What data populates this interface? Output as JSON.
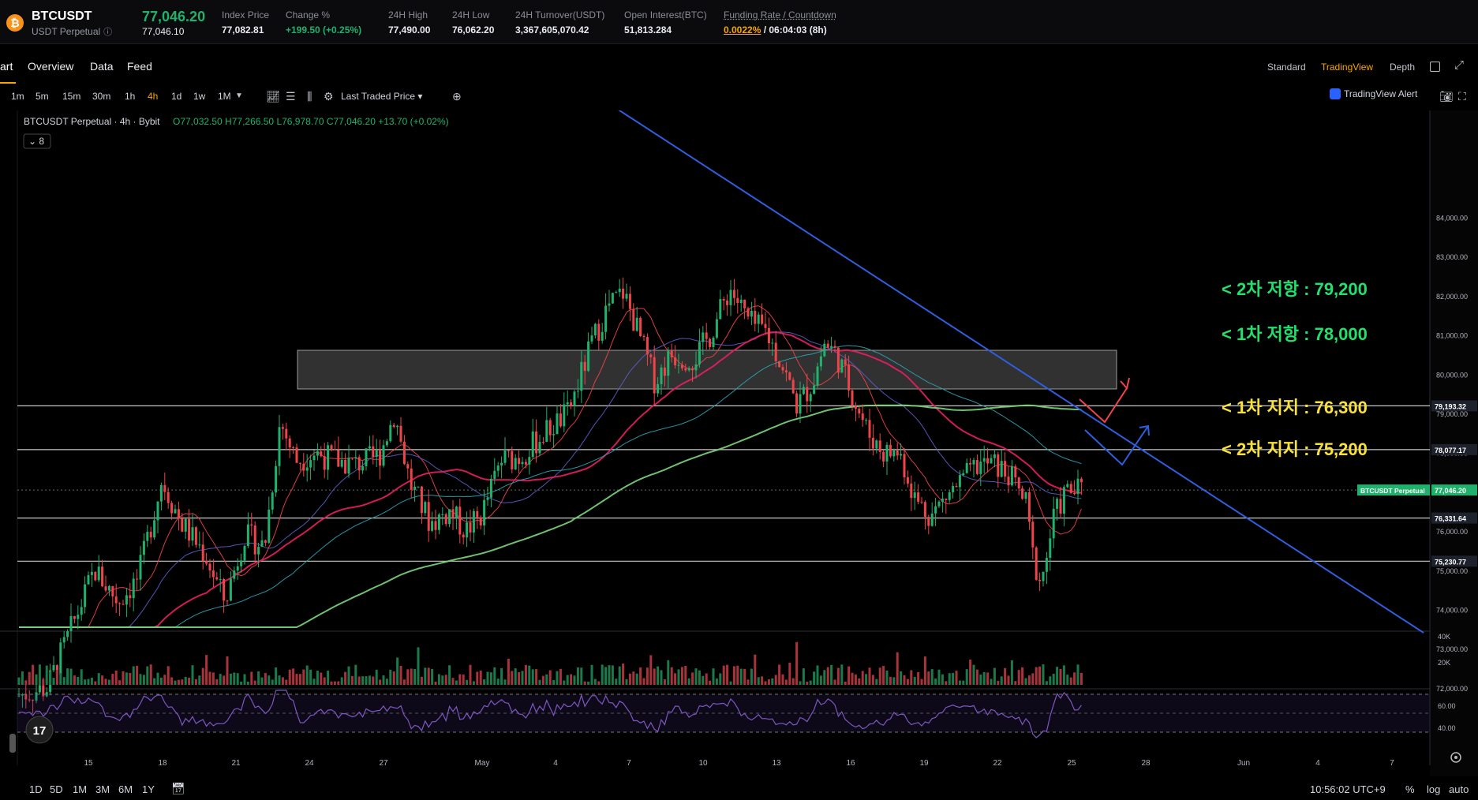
{
  "header": {
    "symbol": "BTCUSDT",
    "contract": "USDT Perpetual",
    "coin_glyph": "₿",
    "last_price": "77,046.20",
    "mark_price": "77,046.10",
    "stats": [
      {
        "label": "Index Price",
        "value": "77,082.81"
      },
      {
        "label": "Change %",
        "value": "+199.50 (+0.25%)"
      },
      {
        "label": "24H High",
        "value": "77,490.00"
      },
      {
        "label": "24H Low",
        "value": "76,062.20"
      },
      {
        "label": "24H Turnover(USDT)",
        "value": "3,367,605,070.42"
      },
      {
        "label": "Open Interest(BTC)",
        "value": "51,813.284"
      }
    ],
    "funding": {
      "label": "Funding Rate / Countdown",
      "rate": "0.0022%",
      "countdown": " / 06:04:03 (8h)"
    }
  },
  "tabs": [
    "art",
    "Overview",
    "Data",
    "Feed"
  ],
  "view_options": [
    "Standard",
    "TradingView",
    "Depth"
  ],
  "timeframes": [
    "1m",
    "5m",
    "15m",
    "30m",
    "1h",
    "4h",
    "1d",
    "1w",
    "1M"
  ],
  "active_timeframe": "4h",
  "toolbar": {
    "price_source": "Last Traded Price",
    "alert": "TradingView Alert"
  },
  "legend": {
    "title": "BTCUSDT Perpetual · 4h · Bybit",
    "ohlc": "O77,032.50  H77,266.50  L76,978.70  C77,046.20  +13.70 (+0.02%)",
    "indicator_count": "8"
  },
  "annotations": [
    {
      "text": "< 2차 저항 : 79,200",
      "color": "#22e06b"
    },
    {
      "text": "< 1차 저항 : 78,000",
      "color": "#22e06b"
    },
    {
      "text": "< 1차 지지 : 76,300",
      "color": "#f7e13a"
    },
    {
      "text": "< 2차 지지 : 75,200",
      "color": "#f7e13a"
    }
  ],
  "price_axis": [
    "84,000.00",
    "83,000.00",
    "82,000.00",
    "81,000.00",
    "80,000.00",
    "79,000.00",
    "78,000.00",
    "77,000.00",
    "76,000.00",
    "75,000.00",
    "74,000.00",
    "73,000.00",
    "72,000.00"
  ],
  "price_tags": [
    {
      "text": "79,193.32",
      "type": "level"
    },
    {
      "text": "78,077.17",
      "type": "level"
    },
    {
      "text": "BTCUSDT Perpetual",
      "type": "name"
    },
    {
      "text": "77,046.20",
      "type": "current"
    },
    {
      "text": "76,331.64",
      "type": "level"
    },
    {
      "text": "75,230.77",
      "type": "level"
    }
  ],
  "volume_axis": [
    "40K",
    "20K"
  ],
  "rsi_axis": [
    "60.00",
    "40.00"
  ],
  "time_axis": [
    "15",
    "18",
    "21",
    "24",
    "27",
    "May",
    "4",
    "7",
    "10",
    "13",
    "16",
    "19",
    "22",
    "25",
    "28",
    "Jun",
    "4",
    "7"
  ],
  "bottom": {
    "ranges": [
      "1D",
      "5D",
      "1M",
      "3M",
      "6M",
      "1Y"
    ],
    "clock": "10:56:02 UTC+9",
    "options": [
      "%",
      "log",
      "auto"
    ]
  },
  "colors": {
    "up": "#20b26c",
    "down": "#ef454a",
    "accent": "#f7a600",
    "trendline": "#2f5fe0"
  }
}
